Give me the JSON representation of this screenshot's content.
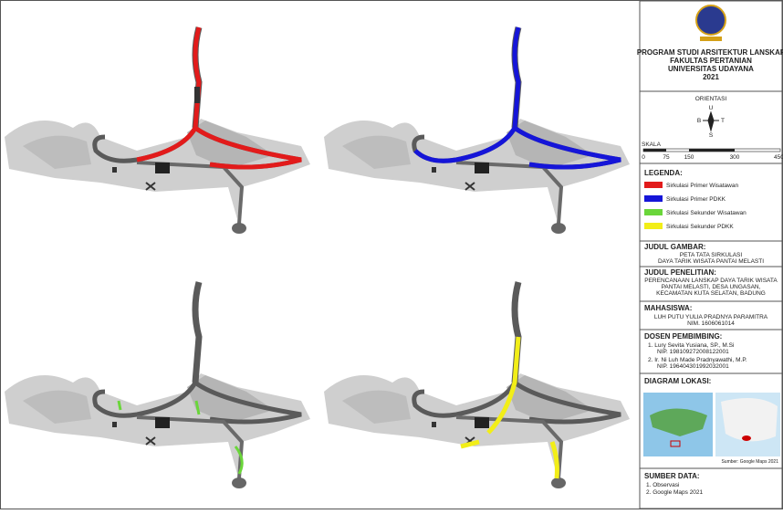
{
  "header": {
    "lines": [
      "PROGRAM STUDI ARSITEKTUR LANSKAP",
      "FAKULTAS PERTANIAN",
      "UNIVERSITAS UDAYANA",
      "2021"
    ]
  },
  "orientation": {
    "title": "ORIENTASI",
    "north": "U",
    "west": "B",
    "east": "T",
    "south": "S"
  },
  "scale": {
    "title": "SKALA",
    "labels": [
      "0",
      "75",
      "150",
      "300",
      "450"
    ]
  },
  "legend": {
    "title": "LEGENDA:",
    "items": [
      "Sirkulasi Primer Wisatawan",
      "Sirkulasi Primer PDKK",
      "Sirkulasi Sekunder Wisatawan",
      "Sirkulasi Sekunder PDKK"
    ]
  },
  "drawing_title": {
    "title": "JUDUL GAMBAR:",
    "lines": [
      "PETA TATA SIRKULASI",
      "DAYA TARIK WISATA PANTAI MELASTI"
    ]
  },
  "research_title": {
    "title": "JUDUL PENELITIAN:",
    "lines": [
      "PERENCANAAN LANSKAP DAYA TARIK WISATA",
      "PANTAI MELASTI, DESA UNGASAN,",
      "KECAMATAN KUTA SELATAN, BADUNG"
    ]
  },
  "student": {
    "title": "MAHASISWA:",
    "lines": [
      "LUH PUTU YULIA PRADNYA PARAMITRA",
      "NIM. 1606061014"
    ]
  },
  "supervisors": {
    "title": "DOSEN PEMBIMBING:",
    "lines": [
      "1. Lury Sevita Yusiana, SP., M.Si",
      "NIP. 198109272008122001",
      "2. Ir. Ni Luh Made Pradnyawathi, M.P.",
      "NIP. 196404301992032001"
    ]
  },
  "location": {
    "title": "DIAGRAM LOKASI:",
    "source": "Sumber: Google Maps 2021"
  },
  "data_source": {
    "title": "SUMBER DATA:",
    "lines": [
      "1. Observasi",
      "2. Google Maps 2021"
    ]
  }
}
